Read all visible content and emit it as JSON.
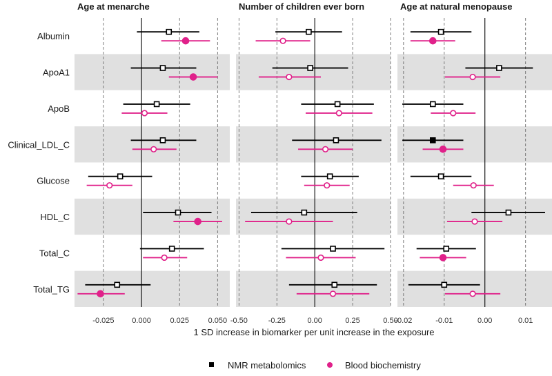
{
  "chart_data": {
    "type": "forest",
    "xlabel": "1 SD increase in biomarker per unit increase in the exposure",
    "rows": [
      "Albumin",
      "ApoA1",
      "ApoB",
      "Clinical_LDL_C",
      "Glucose",
      "HDL_C",
      "Total_C",
      "Total_TG"
    ],
    "legend": [
      {
        "name": "NMR metabolomics",
        "color": "#000000",
        "shape": "square"
      },
      {
        "name": "Blood biochemistry",
        "color": "#e0218a",
        "shape": "circle"
      }
    ],
    "panels": [
      {
        "title": "Age at menarche",
        "xlim": [
          -0.044,
          0.058
        ],
        "ticks": [
          -0.025,
          0.0,
          0.025,
          0.05
        ],
        "tick_labels": [
          "-0.025",
          "0.000",
          "0.025",
          "0.050"
        ],
        "series": [
          {
            "name": "NMR metabolomics",
            "points": [
              {
                "est": 0.018,
                "lo": -0.003,
                "hi": 0.038,
                "filled": false
              },
              {
                "est": 0.014,
                "lo": -0.007,
                "hi": 0.036,
                "filled": false
              },
              {
                "est": 0.01,
                "lo": -0.012,
                "hi": 0.032,
                "filled": false
              },
              {
                "est": 0.014,
                "lo": -0.007,
                "hi": 0.036,
                "filled": false
              },
              {
                "est": -0.014,
                "lo": -0.035,
                "hi": 0.007,
                "filled": false
              },
              {
                "est": 0.024,
                "lo": 0.001,
                "hi": 0.046,
                "filled": false
              },
              {
                "est": 0.02,
                "lo": -0.001,
                "hi": 0.041,
                "filled": false
              },
              {
                "est": -0.016,
                "lo": -0.037,
                "hi": 0.006,
                "filled": false
              }
            ]
          },
          {
            "name": "Blood biochemistry",
            "points": [
              {
                "est": 0.029,
                "lo": 0.013,
                "hi": 0.045,
                "filled": true
              },
              {
                "est": 0.034,
                "lo": 0.018,
                "hi": 0.05,
                "filled": true
              },
              {
                "est": 0.002,
                "lo": -0.013,
                "hi": 0.017,
                "filled": false
              },
              {
                "est": 0.008,
                "lo": -0.006,
                "hi": 0.023,
                "filled": false
              },
              {
                "est": -0.021,
                "lo": -0.036,
                "hi": -0.006,
                "filled": false
              },
              {
                "est": 0.037,
                "lo": 0.021,
                "hi": 0.053,
                "filled": true
              },
              {
                "est": 0.015,
                "lo": 0.001,
                "hi": 0.03,
                "filled": false
              },
              {
                "est": -0.027,
                "lo": -0.042,
                "hi": -0.011,
                "filled": true
              }
            ]
          }
        ]
      },
      {
        "title": "Number of children ever born",
        "xlim": [
          -0.52,
          0.5
        ],
        "ticks": [
          -0.5,
          -0.25,
          0.0,
          0.25,
          0.5
        ],
        "tick_labels": [
          "-0.50",
          "-0.25",
          "0.00",
          "0.25",
          "0.50"
        ],
        "series": [
          {
            "name": "NMR metabolomics",
            "points": [
              {
                "est": -0.04,
                "lo": -0.26,
                "hi": 0.18,
                "filled": false
              },
              {
                "est": -0.03,
                "lo": -0.28,
                "hi": 0.22,
                "filled": false
              },
              {
                "est": 0.15,
                "lo": -0.09,
                "hi": 0.39,
                "filled": false
              },
              {
                "est": 0.14,
                "lo": -0.15,
                "hi": 0.44,
                "filled": false
              },
              {
                "est": 0.1,
                "lo": -0.09,
                "hi": 0.29,
                "filled": false
              },
              {
                "est": -0.07,
                "lo": -0.42,
                "hi": 0.28,
                "filled": false
              },
              {
                "est": 0.12,
                "lo": -0.22,
                "hi": 0.46,
                "filled": false
              },
              {
                "est": 0.13,
                "lo": -0.17,
                "hi": 0.41,
                "filled": false
              }
            ]
          },
          {
            "name": "Blood biochemistry",
            "points": [
              {
                "est": -0.21,
                "lo": -0.39,
                "hi": -0.03,
                "filled": false
              },
              {
                "est": -0.17,
                "lo": -0.37,
                "hi": 0.04,
                "filled": false
              },
              {
                "est": 0.16,
                "lo": -0.06,
                "hi": 0.38,
                "filled": false
              },
              {
                "est": 0.07,
                "lo": -0.11,
                "hi": 0.25,
                "filled": false
              },
              {
                "est": 0.08,
                "lo": -0.07,
                "hi": 0.23,
                "filled": false
              },
              {
                "est": -0.17,
                "lo": -0.46,
                "hi": 0.12,
                "filled": false
              },
              {
                "est": 0.04,
                "lo": -0.19,
                "hi": 0.27,
                "filled": false
              },
              {
                "est": 0.12,
                "lo": -0.12,
                "hi": 0.36,
                "filled": false
              }
            ]
          }
        ]
      },
      {
        "title": "Age at natural menopause",
        "xlim": [
          -0.0215,
          0.0165
        ],
        "ticks": [
          -0.02,
          -0.01,
          0.0,
          0.01
        ],
        "tick_labels": [
          "-0.02",
          "-0.01",
          "0.00",
          "0.01"
        ],
        "series": [
          {
            "name": "NMR metabolomics",
            "points": [
              {
                "est": -0.0108,
                "lo": -0.0183,
                "hi": -0.0033,
                "filled": false
              },
              {
                "est": 0.0035,
                "lo": -0.0048,
                "hi": 0.0118,
                "filled": false
              },
              {
                "est": -0.0128,
                "lo": -0.0203,
                "hi": -0.0053,
                "filled": false
              },
              {
                "est": -0.0128,
                "lo": -0.0203,
                "hi": -0.0053,
                "filled": true
              },
              {
                "est": -0.0108,
                "lo": -0.0183,
                "hi": -0.0033,
                "filled": false
              },
              {
                "est": 0.0058,
                "lo": -0.0033,
                "hi": 0.0148,
                "filled": false
              },
              {
                "est": -0.0095,
                "lo": -0.0168,
                "hi": -0.0022,
                "filled": false
              },
              {
                "est": -0.01,
                "lo": -0.0188,
                "hi": -0.0012,
                "filled": false
              }
            ]
          },
          {
            "name": "Blood biochemistry",
            "points": [
              {
                "est": -0.0128,
                "lo": -0.0183,
                "hi": -0.0073,
                "filled": true
              },
              {
                "est": -0.003,
                "lo": -0.0098,
                "hi": 0.0038,
                "filled": false
              },
              {
                "est": -0.0078,
                "lo": -0.0133,
                "hi": -0.0023,
                "filled": false
              },
              {
                "est": -0.0103,
                "lo": -0.0153,
                "hi": -0.0053,
                "filled": true
              },
              {
                "est": -0.0028,
                "lo": -0.0078,
                "hi": 0.0022,
                "filled": false
              },
              {
                "est": -0.0025,
                "lo": -0.0093,
                "hi": 0.0043,
                "filled": false
              },
              {
                "est": -0.0103,
                "lo": -0.016,
                "hi": -0.0046,
                "filled": true
              },
              {
                "est": -0.003,
                "lo": -0.0098,
                "hi": 0.0038,
                "filled": false
              }
            ]
          }
        ]
      }
    ]
  }
}
